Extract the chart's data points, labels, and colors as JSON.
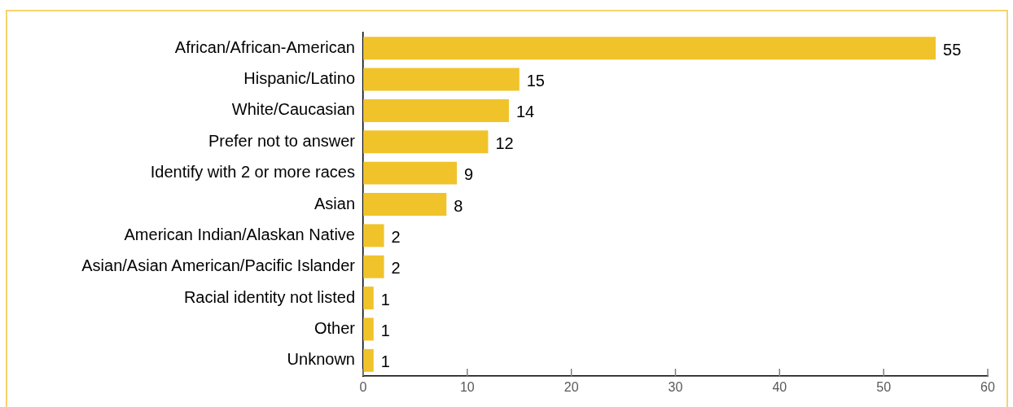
{
  "chart_data": {
    "type": "bar",
    "orientation": "horizontal",
    "categories": [
      "African/African-American",
      "Hispanic/Latino",
      "White/Caucasian",
      "Prefer not to answer",
      "Identify with 2 or more races",
      "Asian",
      "American Indian/Alaskan Native",
      "Asian/Asian American/Pacific Islander",
      "Racial identity not listed",
      "Other",
      "Unknown"
    ],
    "values": [
      55,
      15,
      14,
      12,
      9,
      8,
      2,
      2,
      1,
      1,
      1
    ],
    "color": "#f0c32a",
    "xlim": [
      0,
      60
    ],
    "xticks": [
      0,
      10,
      20,
      30,
      40,
      50,
      60
    ],
    "data_labels": true
  }
}
